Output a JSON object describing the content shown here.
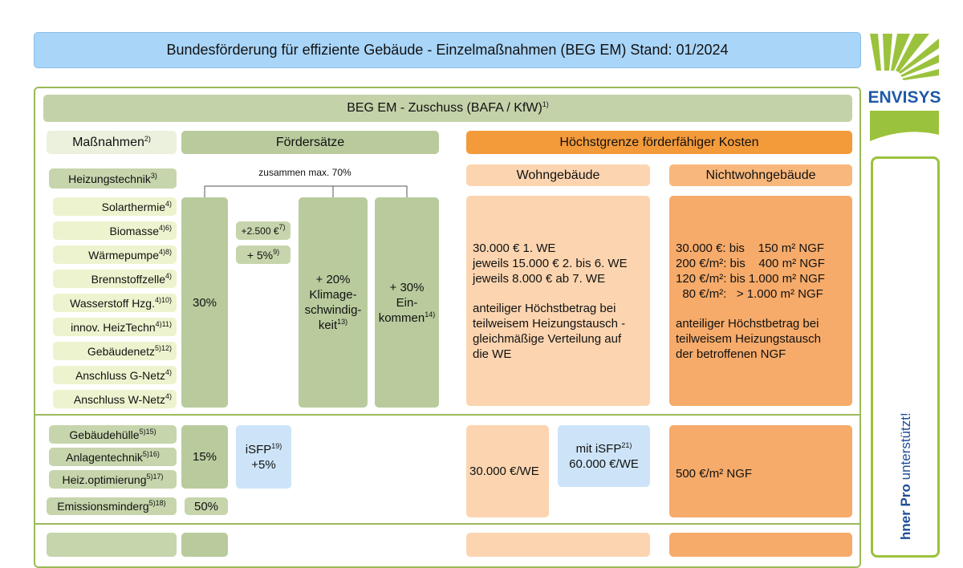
{
  "header": {
    "title": "Bundesförderung für effiziente Gebäude - Einzelmaßnahmen (BEG EM) Stand: 01/2024"
  },
  "logo": {
    "brand": "ENVISYS"
  },
  "side_banner": {
    "bold": "hner Pro",
    "text": " unterstützt!"
  },
  "section_title": {
    "text": "BEG EM - Zuschuss (BAFA / KfW)",
    "note": "1)"
  },
  "columns": {
    "measures": {
      "text": "Maßnahmen",
      "note": "2)"
    },
    "rates": "Fördersätze",
    "max_costs": "Höchstgrenze förderfähiger Kosten",
    "residential": "Wohngebäude",
    "non_residential": "Nichtwohngebäude"
  },
  "heating": {
    "label": {
      "text": "Heizungstechnik",
      "note": "3)"
    },
    "cap": "zusammen max. 70%",
    "items": [
      {
        "text": "Solarthermie",
        "note": "4)"
      },
      {
        "text": "Biomasse",
        "note": "4)6)"
      },
      {
        "text": "Wärmepumpe",
        "note": "4)8)"
      },
      {
        "text": "Brennstoffzelle",
        "note": "4)"
      },
      {
        "text": "Wasserstoff Hzg.",
        "note": "4)10)"
      },
      {
        "text": "innov. HeizTechn",
        "note": "4)11)"
      },
      {
        "text": "Gebäudenetz",
        "note": "5)12)"
      },
      {
        "text": "Anschluss G-Netz",
        "note": "4)"
      },
      {
        "text": "Anschluss W-Netz",
        "note": "4)"
      }
    ],
    "base_rate": "30%",
    "bonus_a": {
      "text": "+2.500 €",
      "note": "7)"
    },
    "bonus_b": {
      "text": "+ 5%",
      "note": "9)"
    },
    "climate_bonus": [
      "+ 20%",
      "Klimage-",
      "schwindig-",
      {
        "text": "keit",
        "note": "13)"
      }
    ],
    "income_bonus": [
      "+ 30%",
      "Ein-",
      {
        "text": "kommen",
        "note": "14)"
      }
    ],
    "residential": {
      "limits": [
        "30.000 € 1. WE",
        "jeweils 15.000 € 2. bis 6. WE",
        "jeweils 8.000 € ab 7. WE"
      ],
      "note": [
        "anteiliger Höchstbetrag bei",
        "teilweisem Heizungstausch -",
        "gleichmäßige Verteilung auf",
        "die WE"
      ]
    },
    "non_residential": {
      "limits": [
        "30.000 €: bis    150 m² NGF",
        "200 €/m²: bis    400 m² NGF",
        "120 €/m²: bis 1.000 m² NGF",
        "  80 €/m²:   > 1.000 m² NGF"
      ],
      "note": [
        "anteiliger Höchstbetrag bei",
        "teilweisem Heizungstausch",
        "der betroffenen NGF"
      ]
    }
  },
  "envelope": {
    "items": [
      {
        "text": "Gebäudehülle",
        "note": "5)15)"
      },
      {
        "text": "Anlagentechnik",
        "note": "5)16)"
      },
      {
        "text": "Heiz.optimierung",
        "note": "5)17)"
      }
    ],
    "base_rate": "15%",
    "bonus": [
      {
        "text": "iSFP",
        "note": "19)"
      },
      "+5%"
    ],
    "residential": "30.000 €/WE",
    "residential_isfp": [
      {
        "text": "mit iSFP",
        "note": "21)"
      },
      "60.000 €/WE"
    ],
    "non_residential": "500 €/m² NGF"
  },
  "emission": {
    "label": {
      "text": "Emissionsminderg",
      "note": "5)18)"
    },
    "rate": "50%"
  }
}
